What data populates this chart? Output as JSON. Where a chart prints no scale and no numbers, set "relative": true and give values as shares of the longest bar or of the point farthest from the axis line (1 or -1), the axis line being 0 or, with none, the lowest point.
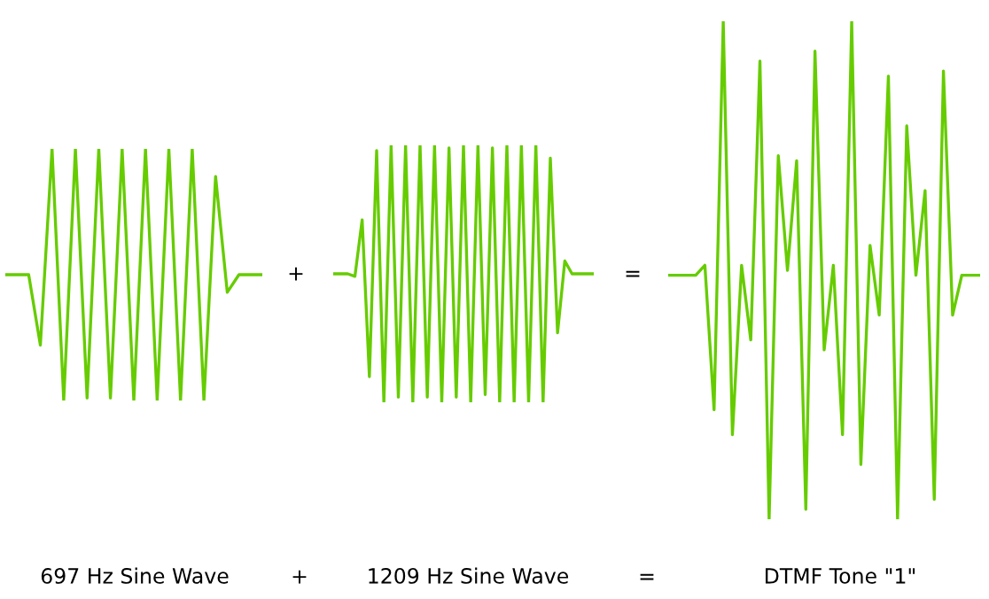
{
  "chart_data": [
    {
      "type": "line",
      "relative": true,
      "xlabel": "697 Hz Sine Wave",
      "annotations": [
        "+",
        "+"
      ],
      "categories": [
        null,
        null,
        null,
        null,
        null,
        null,
        null,
        null,
        null,
        null,
        null,
        null,
        null,
        null,
        null,
        null,
        null,
        null,
        null,
        null,
        null,
        null,
        null
      ],
      "series": [
        {
          "color": "#66cc00",
          "values": [
            0.5,
            0.5,
            0.5,
            0.22,
            1.0,
            0,
            1,
            0.01,
            1,
            0.01,
            1,
            0,
            1,
            0,
            1,
            0,
            1,
            0,
            0.89,
            0.43,
            0.5,
            0.5,
            0.5
          ]
        }
      ]
    },
    {
      "type": "line",
      "relative": true,
      "xlabel": "1209 Hz Sine Wave",
      "annotations": [
        "=",
        "="
      ],
      "categories": [
        null,
        null,
        null,
        null,
        null,
        null,
        null,
        null,
        null,
        null,
        null,
        null,
        null,
        null,
        null,
        null,
        null,
        null,
        null,
        null,
        null,
        null,
        null,
        null,
        null,
        null,
        null,
        null,
        null,
        null,
        null,
        null,
        null,
        null,
        null,
        null,
        null
      ],
      "series": [
        {
          "color": "#66cc00",
          "values": [
            0.5,
            0.5,
            0.5,
            0.49,
            0.71,
            0.1,
            0.98,
            0,
            1,
            0.02,
            1,
            0,
            1,
            0.02,
            1,
            0,
            0.99,
            0.02,
            1,
            0,
            1,
            0.03,
            0.99,
            0,
            1,
            0,
            1,
            0,
            1,
            0,
            0.95,
            0.27,
            0.55,
            0.5,
            0.5,
            0.5,
            0.5
          ]
        }
      ]
    },
    {
      "type": "line",
      "relative": true,
      "xlabel": "DTMF Tone \"1\"",
      "categories": [
        null,
        null,
        null,
        null,
        null,
        null,
        null,
        null,
        null,
        null,
        null,
        null,
        null,
        null,
        null,
        null,
        null,
        null,
        null,
        null,
        null,
        null,
        null,
        null,
        null,
        null,
        null,
        null,
        null,
        null,
        null,
        null,
        null,
        null,
        null
      ],
      "series": [
        {
          "color": "#66cc00",
          "values": [
            0.49,
            0.49,
            0.49,
            0.49,
            0.51,
            0.22,
            1,
            0.17,
            0.51,
            0.36,
            0.92,
            0,
            0.73,
            0.5,
            0.72,
            0.02,
            0.94,
            0.34,
            0.51,
            0.17,
            1,
            0.11,
            0.55,
            0.41,
            0.89,
            0,
            0.79,
            0.49,
            0.66,
            0.04,
            0.9,
            0.41,
            0.49,
            0.49,
            0.49
          ]
        }
      ]
    }
  ]
}
